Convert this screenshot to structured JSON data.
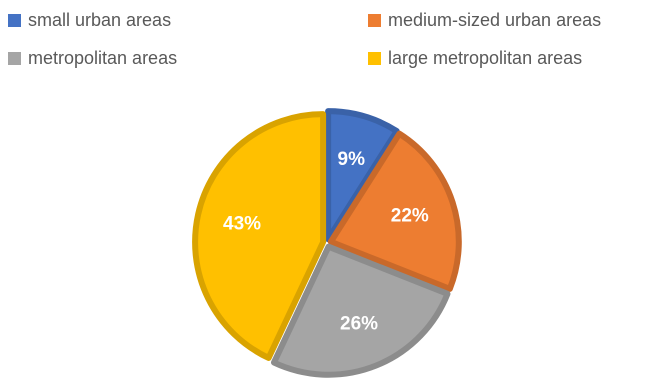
{
  "chart_data": {
    "type": "pie",
    "categories": [
      "small urban areas",
      "medium-sized urban areas",
      "metropolitan areas",
      "large metropolitan areas"
    ],
    "values": [
      9,
      22,
      26,
      43
    ],
    "data_labels": [
      "9%",
      "22%",
      "26%",
      "43%"
    ],
    "colors": [
      "#4472C4",
      "#ED7D31",
      "#A5A5A5",
      "#FFC000"
    ],
    "border_colors": [
      "#3A62A8",
      "#C9692A",
      "#8C8C8C",
      "#D9A300"
    ],
    "title": "",
    "legend_position": "top"
  }
}
